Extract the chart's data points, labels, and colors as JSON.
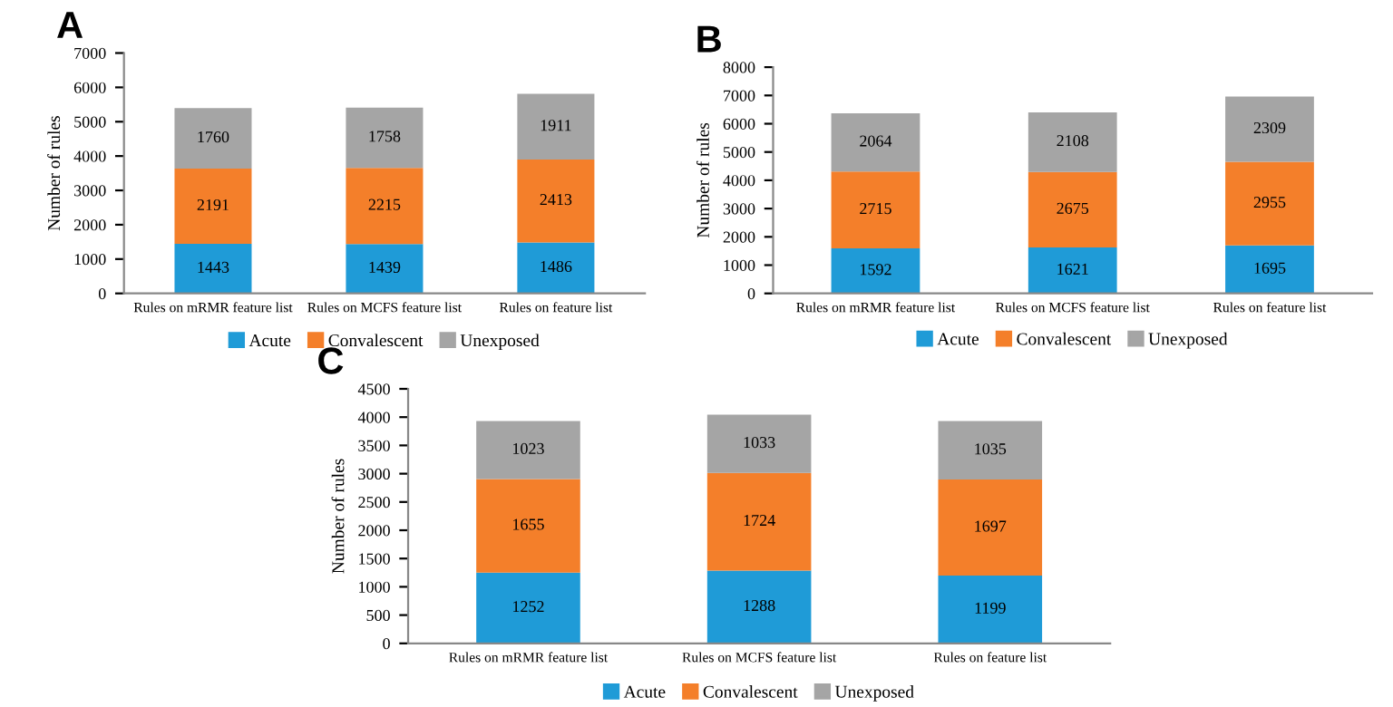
{
  "chart_data": [
    {
      "type": "bar",
      "title": "A",
      "ylabel": "Number of rules",
      "categories": [
        "Rules on mRMR feature list",
        "Rules on MCFS feature list",
        "Rules on feature list"
      ],
      "stacked": true,
      "data_labels": true,
      "legend": "bottom",
      "grid": false,
      "ylim": [
        0,
        7000
      ],
      "yticks": [
        0,
        1000,
        2000,
        3000,
        4000,
        5000,
        6000,
        7000
      ],
      "series": [
        {
          "name": "Acute",
          "color": "#1f9bd7",
          "values": [
            1443,
            1439,
            1486
          ]
        },
        {
          "name": "Convalescent",
          "color": "#f47f2a",
          "values": [
            2191,
            2215,
            2413
          ]
        },
        {
          "name": "Unexposed",
          "color": "#a5a5a5",
          "values": [
            1760,
            1758,
            1911
          ]
        }
      ]
    },
    {
      "type": "bar",
      "title": "B",
      "ylabel": "Number of rules",
      "categories": [
        "Rules on mRMR feature list",
        "Rules on MCFS feature list",
        "Rules on feature list"
      ],
      "stacked": true,
      "data_labels": true,
      "legend": "bottom",
      "grid": false,
      "ylim": [
        0,
        8000
      ],
      "yticks": [
        0,
        1000,
        2000,
        3000,
        4000,
        5000,
        6000,
        7000,
        8000
      ],
      "series": [
        {
          "name": "Acute",
          "color": "#1f9bd7",
          "values": [
            1592,
            1621,
            1695
          ]
        },
        {
          "name": "Convalescent",
          "color": "#f47f2a",
          "values": [
            2715,
            2675,
            2955
          ]
        },
        {
          "name": "Unexposed",
          "color": "#a5a5a5",
          "values": [
            2064,
            2108,
            2309
          ]
        }
      ]
    },
    {
      "type": "bar",
      "title": "C",
      "ylabel": "Number of rules",
      "categories": [
        "Rules on mRMR feature list",
        "Rules on MCFS feature list",
        "Rules on feature list"
      ],
      "stacked": true,
      "data_labels": true,
      "legend": "bottom",
      "grid": false,
      "ylim": [
        0,
        4500
      ],
      "yticks": [
        0,
        500,
        1000,
        1500,
        2000,
        2500,
        3000,
        3500,
        4000,
        4500
      ],
      "series": [
        {
          "name": "Acute",
          "color": "#1f9bd7",
          "values": [
            1252,
            1288,
            1199
          ]
        },
        {
          "name": "Convalescent",
          "color": "#f47f2a",
          "values": [
            1655,
            1724,
            1697
          ]
        },
        {
          "name": "Unexposed",
          "color": "#a5a5a5",
          "values": [
            1023,
            1033,
            1035
          ]
        }
      ]
    }
  ]
}
